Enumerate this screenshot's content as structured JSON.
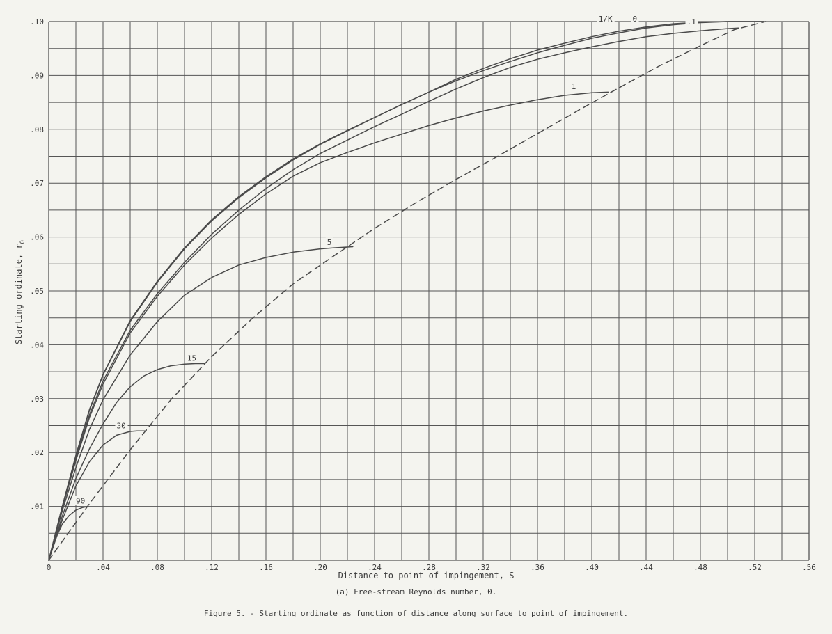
{
  "figure_caption": "Figure 5. - Starting ordinate as function of distance along surface to point of impingement.",
  "subcaption": "(a) Free-stream Reynolds number, 0.",
  "colors": {
    "background": "#f4f4ef",
    "grid": "#555555",
    "curve": "#4a4a4a",
    "text": "#3a3a3a"
  },
  "chart_data": {
    "type": "line",
    "title": "",
    "xlabel": "Distance to point of impingement, S",
    "ylabel": "Starting ordinate, r",
    "ylabel_subscript": "0",
    "xlim": [
      0,
      0.56
    ],
    "ylim": [
      0,
      0.1
    ],
    "grid": true,
    "x_tick_values": [
      0,
      0.04,
      0.08,
      0.12,
      0.16,
      0.2,
      0.24,
      0.28,
      0.32,
      0.36,
      0.4,
      0.44,
      0.48,
      0.52,
      0.56
    ],
    "x_tick_labels": [
      "0",
      ".04",
      ".08",
      ".12",
      ".16",
      ".20",
      ".24",
      ".28",
      ".32",
      ".36",
      ".40",
      ".44",
      ".48",
      ".52",
      ".56"
    ],
    "y_tick_values": [
      0.01,
      0.02,
      0.03,
      0.04,
      0.05,
      0.06,
      0.07,
      0.08,
      0.09,
      0.1
    ],
    "y_tick_labels": [
      ".01",
      ".02",
      ".03",
      ".04",
      ".05",
      ".06",
      ".07",
      ".08",
      ".09",
      ".10"
    ],
    "series": [
      {
        "label": "0",
        "style": "solid",
        "x": [
          0,
          0.01,
          0.02,
          0.03,
          0.04,
          0.06,
          0.08,
          0.1,
          0.12,
          0.14,
          0.16,
          0.18,
          0.2,
          0.22,
          0.24,
          0.26,
          0.28,
          0.3,
          0.32,
          0.34,
          0.36,
          0.38,
          0.4,
          0.42,
          0.44,
          0.46,
          0.48,
          0.5,
          0.52,
          0.527
        ],
        "y": [
          0,
          0.01,
          0.0195,
          0.028,
          0.0345,
          0.0445,
          0.0518,
          0.058,
          0.0632,
          0.0675,
          0.0712,
          0.0745,
          0.0773,
          0.0798,
          0.0822,
          0.0846,
          0.0869,
          0.089,
          0.0909,
          0.0926,
          0.0942,
          0.0956,
          0.0969,
          0.0979,
          0.0988,
          0.0994,
          0.0998,
          0.1,
          0.1,
          0.1
        ]
      },
      {
        "label": "1/K",
        "style": "solid",
        "x": [
          0,
          0.01,
          0.02,
          0.03,
          0.04,
          0.06,
          0.08,
          0.1,
          0.12,
          0.14,
          0.16,
          0.18,
          0.2,
          0.22,
          0.24,
          0.26,
          0.28,
          0.3,
          0.32,
          0.34,
          0.36,
          0.38,
          0.4,
          0.42,
          0.44,
          0.46,
          0.48,
          0.5,
          0.52,
          0.527
        ],
        "y": [
          0,
          0.01,
          0.0193,
          0.0278,
          0.0344,
          0.0443,
          0.0516,
          0.0578,
          0.063,
          0.0673,
          0.071,
          0.0743,
          0.0772,
          0.0797,
          0.0822,
          0.0846,
          0.0869,
          0.0893,
          0.0913,
          0.0931,
          0.0947,
          0.096,
          0.0972,
          0.0982,
          0.099,
          0.0996,
          0.0999,
          0.1,
          0.1,
          0.1
        ]
      },
      {
        "label": ".1",
        "style": "solid",
        "x": [
          0,
          0.01,
          0.02,
          0.03,
          0.04,
          0.06,
          0.08,
          0.1,
          0.12,
          0.14,
          0.16,
          0.18,
          0.2,
          0.22,
          0.24,
          0.26,
          0.28,
          0.3,
          0.32,
          0.34,
          0.36,
          0.38,
          0.4,
          0.42,
          0.44,
          0.46,
          0.48,
          0.5,
          0.508
        ],
        "y": [
          0,
          0.0098,
          0.0188,
          0.027,
          0.0333,
          0.0427,
          0.0495,
          0.0553,
          0.0605,
          0.065,
          0.069,
          0.0725,
          0.0755,
          0.078,
          0.0805,
          0.0828,
          0.0852,
          0.0875,
          0.0896,
          0.0915,
          0.093,
          0.0942,
          0.0953,
          0.0963,
          0.0972,
          0.0978,
          0.0983,
          0.0987,
          0.0988
        ]
      },
      {
        "label": "1",
        "style": "solid",
        "x": [
          0,
          0.01,
          0.02,
          0.03,
          0.04,
          0.06,
          0.08,
          0.1,
          0.12,
          0.14,
          0.16,
          0.18,
          0.2,
          0.22,
          0.24,
          0.26,
          0.28,
          0.3,
          0.32,
          0.34,
          0.36,
          0.38,
          0.4,
          0.412
        ],
        "y": [
          0,
          0.0097,
          0.0185,
          0.0265,
          0.0327,
          0.0422,
          0.049,
          0.0548,
          0.0598,
          0.0642,
          0.068,
          0.0713,
          0.0738,
          0.0757,
          0.0775,
          0.0791,
          0.0807,
          0.0821,
          0.0834,
          0.0845,
          0.0855,
          0.0863,
          0.0868,
          0.0869
        ]
      },
      {
        "label": "5",
        "style": "solid",
        "x": [
          0,
          0.01,
          0.02,
          0.03,
          0.04,
          0.06,
          0.08,
          0.1,
          0.12,
          0.14,
          0.16,
          0.18,
          0.2,
          0.21,
          0.224
        ],
        "y": [
          0,
          0.0092,
          0.0172,
          0.0243,
          0.0298,
          0.0381,
          0.0443,
          0.0492,
          0.0525,
          0.0548,
          0.0562,
          0.0572,
          0.0578,
          0.058,
          0.0582
        ]
      },
      {
        "label": "15",
        "style": "solid",
        "x": [
          0,
          0.01,
          0.02,
          0.03,
          0.04,
          0.05,
          0.06,
          0.07,
          0.08,
          0.09,
          0.1,
          0.108,
          0.115
        ],
        "y": [
          0,
          0.0082,
          0.0152,
          0.0207,
          0.0253,
          0.0293,
          0.0322,
          0.0342,
          0.0354,
          0.0361,
          0.0364,
          0.0365,
          0.0365
        ]
      },
      {
        "label": "30",
        "style": "solid",
        "x": [
          0,
          0.01,
          0.02,
          0.03,
          0.04,
          0.05,
          0.06,
          0.065,
          0.072
        ],
        "y": [
          0,
          0.0075,
          0.0138,
          0.0183,
          0.0214,
          0.0232,
          0.0239,
          0.024,
          0.024
        ]
      },
      {
        "label": "90",
        "style": "solid",
        "x": [
          0,
          0.005,
          0.01,
          0.015,
          0.02,
          0.025,
          0.029
        ],
        "y": [
          0,
          0.004,
          0.0067,
          0.0083,
          0.0093,
          0.0098,
          0.01
        ]
      },
      {
        "label": "",
        "style": "dashed",
        "x": [
          0,
          0.03,
          0.06,
          0.09,
          0.12,
          0.15,
          0.18,
          0.21,
          0.24,
          0.27,
          0.3,
          0.33,
          0.36,
          0.39,
          0.42,
          0.45,
          0.48,
          0.505,
          0.528
        ],
        "y": [
          0,
          0.0105,
          0.0205,
          0.0298,
          0.0378,
          0.0449,
          0.0513,
          0.0565,
          0.0616,
          0.0663,
          0.0707,
          0.0749,
          0.0792,
          0.0835,
          0.0877,
          0.0918,
          0.0955,
          0.0985,
          0.1
        ]
      }
    ],
    "annotations": [
      {
        "text": "1/K",
        "x": 0.405,
        "y": 0.1
      },
      {
        "text": "0",
        "x": 0.43,
        "y": 0.1
      },
      {
        "text": ".1",
        "x": 0.47,
        "y": 0.0995
      },
      {
        "text": "1",
        "x": 0.385,
        "y": 0.0875
      },
      {
        "text": "5",
        "x": 0.205,
        "y": 0.0585
      },
      {
        "text": "15",
        "x": 0.102,
        "y": 0.037
      },
      {
        "text": "30",
        "x": 0.05,
        "y": 0.0245
      },
      {
        "text": "90",
        "x": 0.02,
        "y": 0.0105
      }
    ]
  }
}
